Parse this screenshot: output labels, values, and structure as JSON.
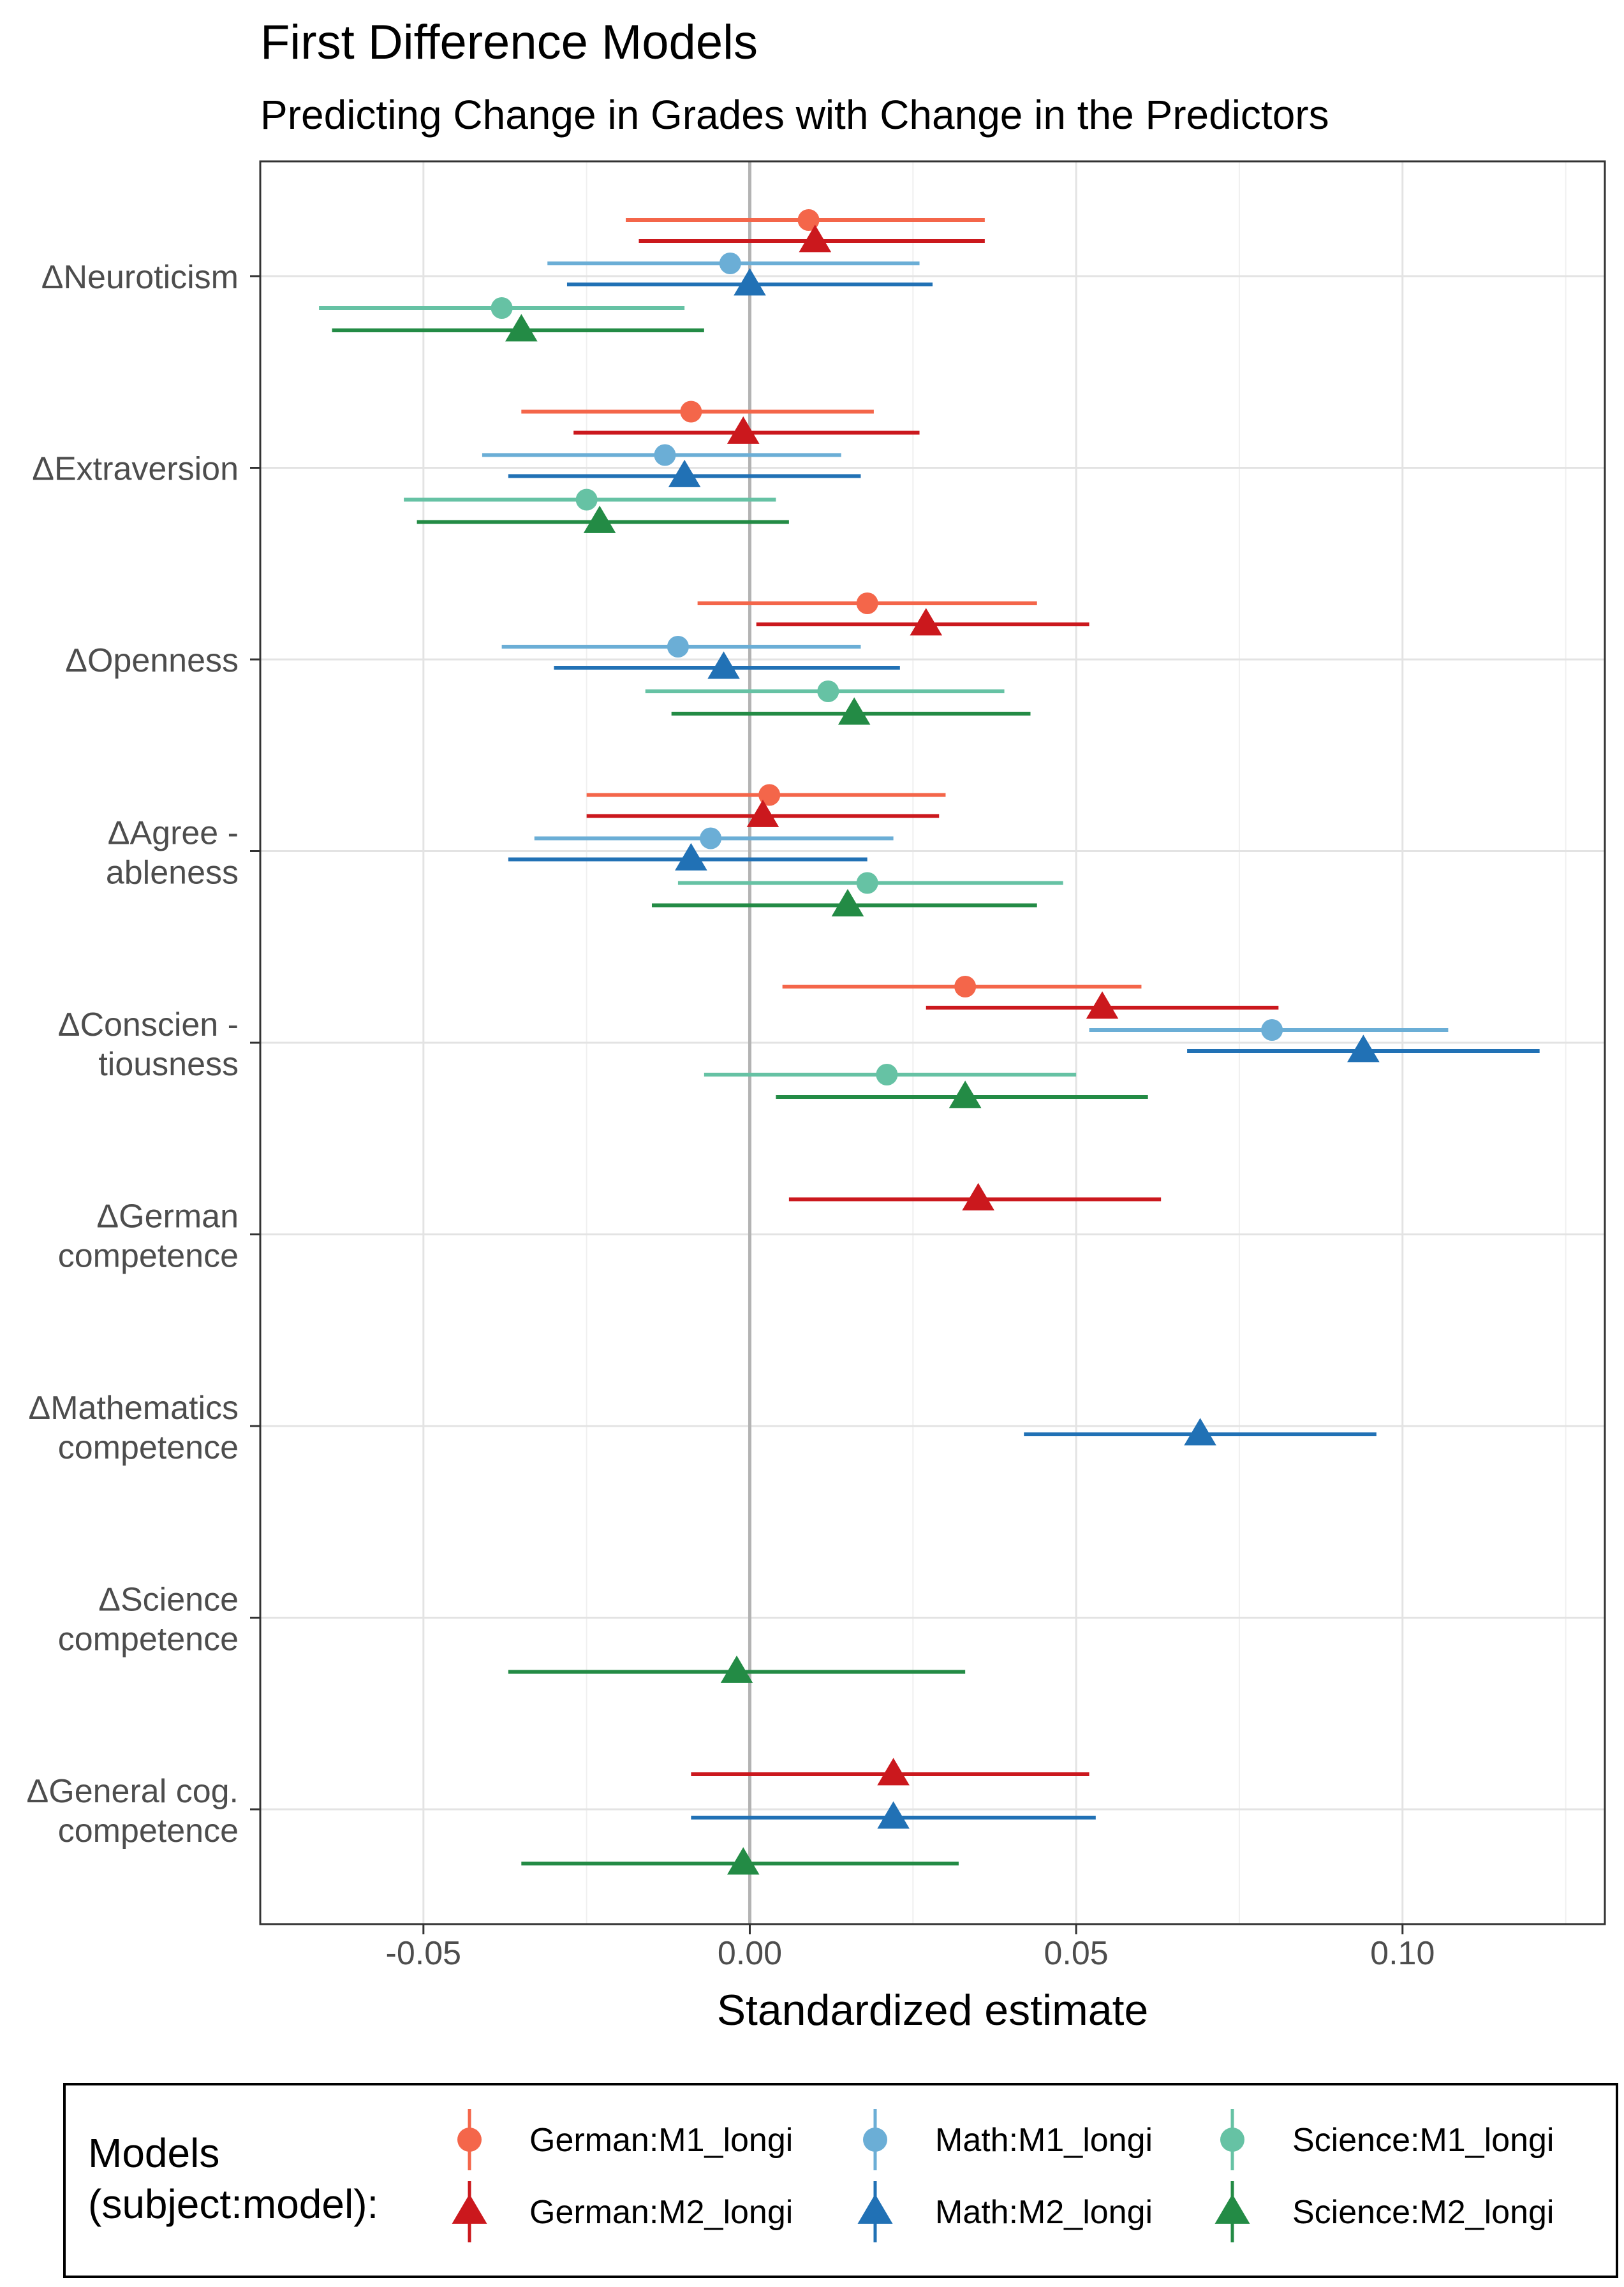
{
  "colors": {
    "German:M1_longi": "#F4664A",
    "German:M2_longi": "#CB181D",
    "Math:M1_longi": "#6BAED6",
    "Math:M2_longi": "#2171B5",
    "Science:M1_longi": "#66C2A4",
    "Science:M2_longi": "#238B45"
  },
  "chart_data": {
    "type": "scatter",
    "subtype": "coefficient-plot-with-confidence-intervals",
    "title": "First Difference Models",
    "subtitle": "Predicting Change in Grades with Change in the Predictors",
    "xlabel": "Standardized estimate",
    "ylabel": "",
    "xlim": [
      -0.075,
      0.131
    ],
    "xticks": [
      -0.05,
      0.0,
      0.05,
      0.1
    ],
    "xtick_labels": [
      "-0.05",
      "0.00",
      "0.05",
      "0.10"
    ],
    "reference_line": 0,
    "grid": true,
    "categories": [
      {
        "id": "neuroticism",
        "lines": [
          "ΔNeuroticism"
        ]
      },
      {
        "id": "extraversion",
        "lines": [
          "ΔExtraversion"
        ]
      },
      {
        "id": "openness",
        "lines": [
          "ΔOpenness"
        ]
      },
      {
        "id": "agreeableness",
        "lines": [
          "ΔAgree -",
          "ableness"
        ]
      },
      {
        "id": "conscientiousness",
        "lines": [
          "ΔConscien -",
          "tiousness"
        ]
      },
      {
        "id": "german-competence",
        "lines": [
          "ΔGerman",
          "competence"
        ]
      },
      {
        "id": "mathematics-competence",
        "lines": [
          "ΔMathematics",
          "competence"
        ]
      },
      {
        "id": "science-competence",
        "lines": [
          "ΔScience",
          "competence"
        ]
      },
      {
        "id": "general-cog-competence",
        "lines": [
          "ΔGeneral cog.",
          "competence"
        ]
      }
    ],
    "legend": {
      "title_lines": [
        "Models",
        "(subject:model):"
      ],
      "position": "bottom",
      "entries": [
        {
          "key": "German:M1_longi",
          "label": "German:M1_longi",
          "shape": "circle"
        },
        {
          "key": "German:M2_longi",
          "label": "German:M2_longi",
          "shape": "triangle"
        },
        {
          "key": "Math:M1_longi",
          "label": "Math:M1_longi",
          "shape": "circle"
        },
        {
          "key": "Math:M2_longi",
          "label": "Math:M2_longi",
          "shape": "triangle"
        },
        {
          "key": "Science:M1_longi",
          "label": "Science:M1_longi",
          "shape": "circle"
        },
        {
          "key": "Science:M2_longi",
          "label": "Science:M2_longi",
          "shape": "triangle"
        }
      ]
    },
    "points": [
      {
        "category": "neuroticism",
        "model": "German:M1_longi",
        "estimate": 0.009,
        "ci": [
          -0.019,
          0.036
        ]
      },
      {
        "category": "neuroticism",
        "model": "German:M2_longi",
        "estimate": 0.01,
        "ci": [
          -0.017,
          0.036
        ]
      },
      {
        "category": "neuroticism",
        "model": "Math:M1_longi",
        "estimate": -0.003,
        "ci": [
          -0.031,
          0.026
        ]
      },
      {
        "category": "neuroticism",
        "model": "Math:M2_longi",
        "estimate": 0.0,
        "ci": [
          -0.028,
          0.028
        ]
      },
      {
        "category": "neuroticism",
        "model": "Science:M1_longi",
        "estimate": -0.038,
        "ci": [
          -0.066,
          -0.01
        ]
      },
      {
        "category": "neuroticism",
        "model": "Science:M2_longi",
        "estimate": -0.035,
        "ci": [
          -0.064,
          -0.007
        ]
      },
      {
        "category": "extraversion",
        "model": "German:M1_longi",
        "estimate": -0.009,
        "ci": [
          -0.035,
          0.019
        ]
      },
      {
        "category": "extraversion",
        "model": "German:M2_longi",
        "estimate": -0.001,
        "ci": [
          -0.027,
          0.026
        ]
      },
      {
        "category": "extraversion",
        "model": "Math:M1_longi",
        "estimate": -0.013,
        "ci": [
          -0.041,
          0.014
        ]
      },
      {
        "category": "extraversion",
        "model": "Math:M2_longi",
        "estimate": -0.01,
        "ci": [
          -0.037,
          0.017
        ]
      },
      {
        "category": "extraversion",
        "model": "Science:M1_longi",
        "estimate": -0.025,
        "ci": [
          -0.053,
          0.004
        ]
      },
      {
        "category": "extraversion",
        "model": "Science:M2_longi",
        "estimate": -0.023,
        "ci": [
          -0.051,
          0.006
        ]
      },
      {
        "category": "openness",
        "model": "German:M1_longi",
        "estimate": 0.018,
        "ci": [
          -0.008,
          0.044
        ]
      },
      {
        "category": "openness",
        "model": "German:M2_longi",
        "estimate": 0.027,
        "ci": [
          0.001,
          0.052
        ]
      },
      {
        "category": "openness",
        "model": "Math:M1_longi",
        "estimate": -0.011,
        "ci": [
          -0.038,
          0.017
        ]
      },
      {
        "category": "openness",
        "model": "Math:M2_longi",
        "estimate": -0.004,
        "ci": [
          -0.03,
          0.023
        ]
      },
      {
        "category": "openness",
        "model": "Science:M1_longi",
        "estimate": 0.012,
        "ci": [
          -0.016,
          0.039
        ]
      },
      {
        "category": "openness",
        "model": "Science:M2_longi",
        "estimate": 0.016,
        "ci": [
          -0.012,
          0.043
        ]
      },
      {
        "category": "agreeableness",
        "model": "German:M1_longi",
        "estimate": 0.003,
        "ci": [
          -0.025,
          0.03
        ]
      },
      {
        "category": "agreeableness",
        "model": "German:M2_longi",
        "estimate": 0.002,
        "ci": [
          -0.025,
          0.029
        ]
      },
      {
        "category": "agreeableness",
        "model": "Math:M1_longi",
        "estimate": -0.006,
        "ci": [
          -0.033,
          0.022
        ]
      },
      {
        "category": "agreeableness",
        "model": "Math:M2_longi",
        "estimate": -0.009,
        "ci": [
          -0.037,
          0.018
        ]
      },
      {
        "category": "agreeableness",
        "model": "Science:M1_longi",
        "estimate": 0.018,
        "ci": [
          -0.011,
          0.048
        ]
      },
      {
        "category": "agreeableness",
        "model": "Science:M2_longi",
        "estimate": 0.015,
        "ci": [
          -0.015,
          0.044
        ]
      },
      {
        "category": "conscientiousness",
        "model": "German:M1_longi",
        "estimate": 0.033,
        "ci": [
          0.005,
          0.06
        ]
      },
      {
        "category": "conscientiousness",
        "model": "German:M2_longi",
        "estimate": 0.054,
        "ci": [
          0.027,
          0.081
        ]
      },
      {
        "category": "conscientiousness",
        "model": "Math:M1_longi",
        "estimate": 0.08,
        "ci": [
          0.052,
          0.107
        ]
      },
      {
        "category": "conscientiousness",
        "model": "Math:M2_longi",
        "estimate": 0.094,
        "ci": [
          0.067,
          0.121
        ]
      },
      {
        "category": "conscientiousness",
        "model": "Science:M1_longi",
        "estimate": 0.021,
        "ci": [
          -0.007,
          0.05
        ]
      },
      {
        "category": "conscientiousness",
        "model": "Science:M2_longi",
        "estimate": 0.033,
        "ci": [
          0.004,
          0.061
        ]
      },
      {
        "category": "german-competence",
        "model": "German:M2_longi",
        "estimate": 0.035,
        "ci": [
          0.006,
          0.063
        ]
      },
      {
        "category": "mathematics-competence",
        "model": "Math:M2_longi",
        "estimate": 0.069,
        "ci": [
          0.042,
          0.096
        ]
      },
      {
        "category": "science-competence",
        "model": "Science:M2_longi",
        "estimate": -0.002,
        "ci": [
          -0.037,
          0.033
        ]
      },
      {
        "category": "general-cog-competence",
        "model": "German:M2_longi",
        "estimate": 0.022,
        "ci": [
          -0.009,
          0.052
        ]
      },
      {
        "category": "general-cog-competence",
        "model": "Math:M2_longi",
        "estimate": 0.022,
        "ci": [
          -0.009,
          0.053
        ]
      },
      {
        "category": "general-cog-competence",
        "model": "Science:M2_longi",
        "estimate": -0.001,
        "ci": [
          -0.035,
          0.032
        ]
      }
    ]
  }
}
